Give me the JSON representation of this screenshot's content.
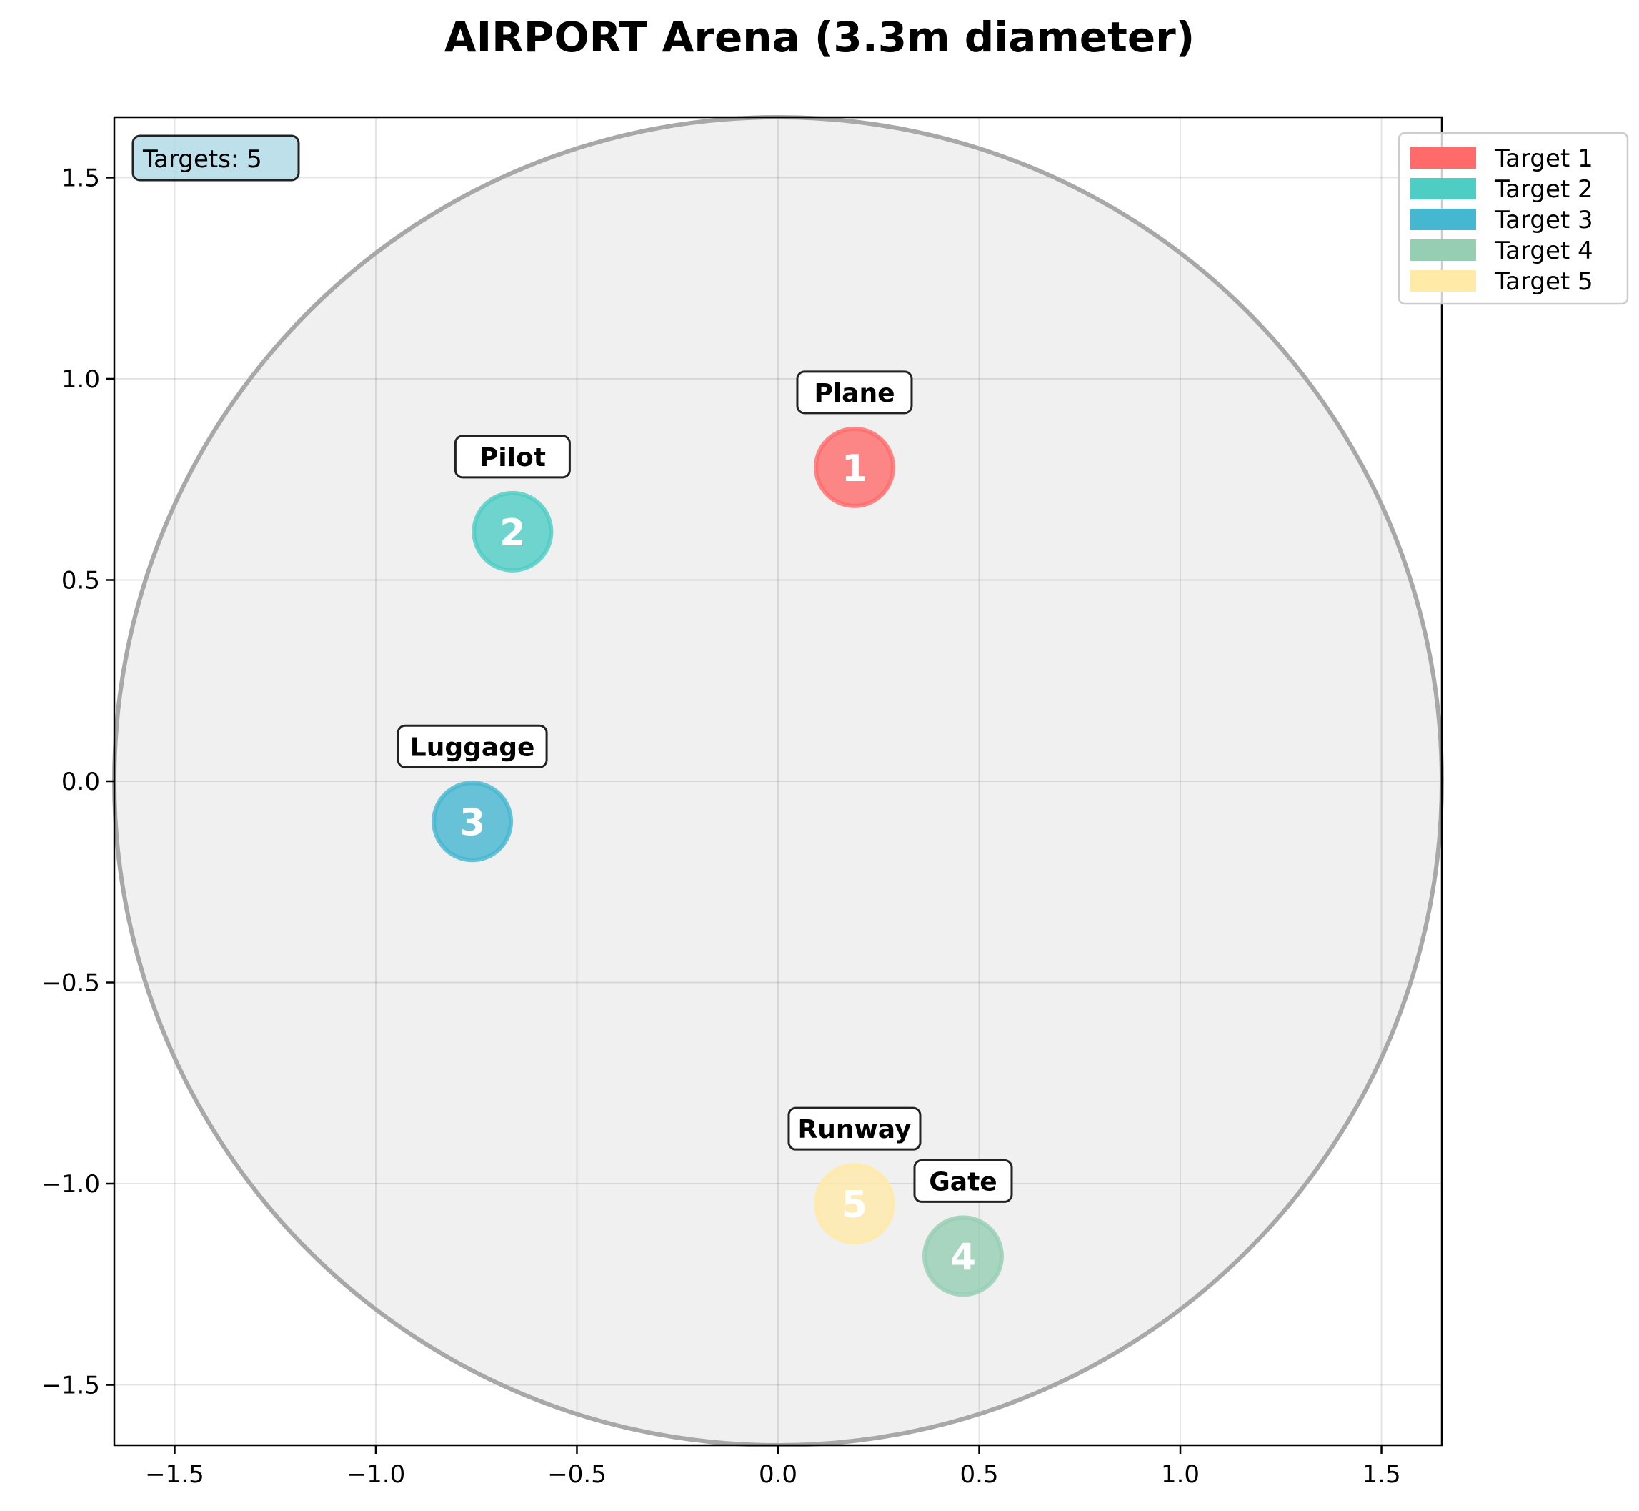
{
  "chart_data": {
    "type": "scatter",
    "title": "AIRPORT Arena (3.3m diameter)",
    "xlabel": "",
    "ylabel": "",
    "xlim": [
      -1.65,
      1.65
    ],
    "ylim": [
      -1.65,
      1.65
    ],
    "grid": true,
    "arena": {
      "shape": "circle",
      "center": [
        0,
        0
      ],
      "radius": 1.65,
      "fill": "#f0f0f0",
      "edge": "#a8a8a8"
    },
    "xticks": [
      -1.5,
      -1.0,
      -0.5,
      0.0,
      0.5,
      1.0,
      1.5
    ],
    "xtick_labels": [
      "−1.5",
      "−1.0",
      "−0.5",
      "0.0",
      "0.5",
      "1.0",
      "1.5"
    ],
    "yticks": [
      1.5,
      1.0,
      0.5,
      0.0,
      -0.5,
      -1.0,
      -1.5
    ],
    "ytick_labels": [
      "1.5",
      "1.0",
      "0.5",
      "0.0",
      "−0.5",
      "−1.0",
      "−1.5"
    ],
    "points": [
      {
        "number": "1",
        "name": "Plane",
        "x": 0.19,
        "y": 0.78,
        "color": "#ff6b6b",
        "alpha": 0.8
      },
      {
        "number": "2",
        "name": "Pilot",
        "x": -0.66,
        "y": 0.62,
        "color": "#4ecdc4",
        "alpha": 0.8
      },
      {
        "number": "3",
        "name": "Luggage",
        "x": -0.76,
        "y": -0.1,
        "color": "#45b7d1",
        "alpha": 0.8
      },
      {
        "number": "4",
        "name": "Gate",
        "x": 0.46,
        "y": -1.18,
        "color": "#96ceb4",
        "alpha": 0.8
      },
      {
        "number": "5",
        "name": "Runway",
        "x": 0.19,
        "y": -1.05,
        "color": "#ffeaa7",
        "alpha": 0.8
      }
    ],
    "legend": {
      "placement": "top-right outside",
      "entries": [
        {
          "label": "Target 1",
          "color": "#ff6b6b"
        },
        {
          "label": "Target 2",
          "color": "#4ecdc4"
        },
        {
          "label": "Target 3",
          "color": "#45b7d1"
        },
        {
          "label": "Target 4",
          "color": "#96ceb4"
        },
        {
          "label": "Target 5",
          "color": "#ffeaa7"
        }
      ]
    },
    "annotation": {
      "text": "Targets: 5",
      "placement": "top-left",
      "fill": "#add8e6"
    }
  }
}
